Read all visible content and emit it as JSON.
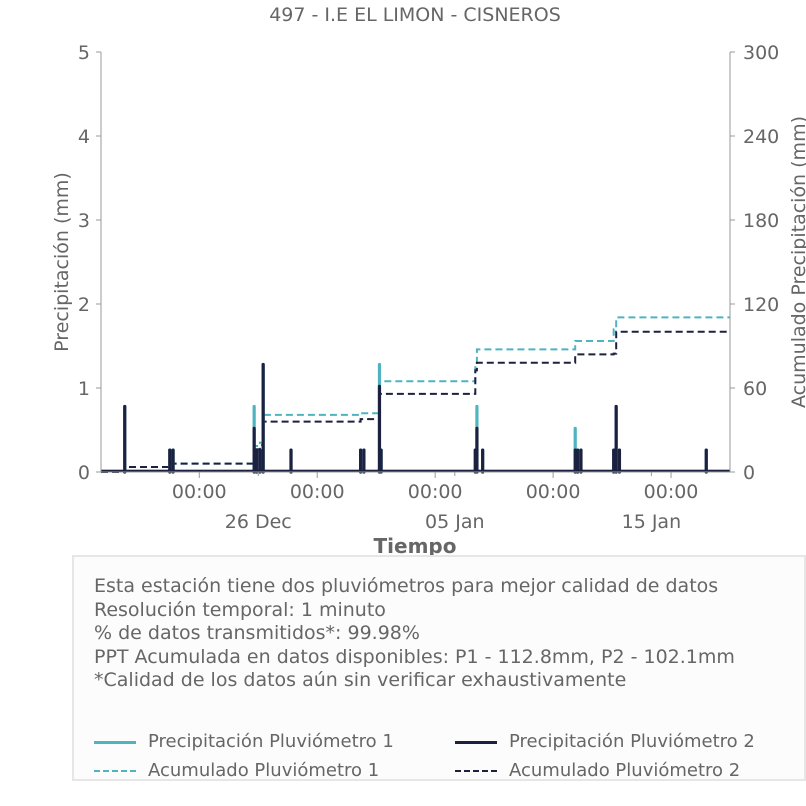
{
  "colors": {
    "p1": "#4fb3c0",
    "p2": "#1c2140",
    "text": "#666666",
    "axis": "#999999"
  },
  "chart_data": {
    "type": "line",
    "title": "497 - I.E EL LIMON - CISNEROS",
    "xlabel": "Tiempo",
    "ylabel": "Precipitación (mm)",
    "y2label": "Acumulado Precipitación (mm)",
    "ylim": [
      0,
      5
    ],
    "y2lim": [
      0,
      300
    ],
    "yticks": [
      "0",
      "1",
      "2",
      "3",
      "4",
      "5"
    ],
    "y2ticks": [
      "0",
      "60",
      "120",
      "180",
      "240",
      "300"
    ],
    "xlim": [
      "2023-12-18",
      "2024-01-19"
    ],
    "xticks": [
      {
        "t": "2023-12-23",
        "label": "00:00"
      },
      {
        "t": "2023-12-29",
        "label": "00:00"
      },
      {
        "t": "2024-01-04",
        "label": "00:00"
      },
      {
        "t": "2024-01-10",
        "label": "00:00"
      },
      {
        "t": "2024-01-16",
        "label": "00:00"
      }
    ],
    "xminor": [
      "2023-12-26",
      "2024-01-05",
      "2024-01-15"
    ],
    "xdatelabels": [
      {
        "t": "2023-12-26",
        "label": "26 Dec"
      },
      {
        "t": "2024-01-05",
        "label": "05 Jan"
      },
      {
        "t": "2024-01-15",
        "label": "15 Jan"
      }
    ],
    "grid": false,
    "series": [
      {
        "name": "Precipitación Pluviómetro 1",
        "axis": "left",
        "style": "solid",
        "points": [
          [
            "2023-12-19 05:00",
            0.78
          ],
          [
            "2023-12-21 12:00",
            0.26
          ],
          [
            "2023-12-21 16:00",
            0.26
          ],
          [
            "2023-12-25 19:00",
            0.78
          ],
          [
            "2023-12-25 22:00",
            0.26
          ],
          [
            "2023-12-26 02:00",
            0.26
          ],
          [
            "2023-12-26 06:00",
            1.28
          ],
          [
            "2023-12-27 16:00",
            0.26
          ],
          [
            "2023-12-31 05:00",
            0.26
          ],
          [
            "2023-12-31 09:00",
            0.26
          ],
          [
            "2024-01-01 04:00",
            1.28
          ],
          [
            "2024-01-01 06:00",
            0.26
          ],
          [
            "2024-01-06 01:00",
            0.26
          ],
          [
            "2024-01-06 03:00",
            0.78
          ],
          [
            "2024-01-06 10:00",
            0.26
          ],
          [
            "2024-01-11 03:00",
            0.52
          ],
          [
            "2024-01-11 06:00",
            0.26
          ],
          [
            "2024-01-11 10:00",
            0.26
          ],
          [
            "2024-01-13 02:00",
            0.26
          ],
          [
            "2024-01-13 05:00",
            0.78
          ],
          [
            "2024-01-13 09:00",
            0.26
          ],
          [
            "2024-01-17 19:00",
            0.26
          ]
        ]
      },
      {
        "name": "Precipitación Pluviómetro 2",
        "axis": "left",
        "style": "solid",
        "points": [
          [
            "2023-12-19 05:00",
            0.78
          ],
          [
            "2023-12-21 12:00",
            0.26
          ],
          [
            "2023-12-21 16:00",
            0.26
          ],
          [
            "2023-12-25 19:00",
            0.52
          ],
          [
            "2023-12-25 22:00",
            0.26
          ],
          [
            "2023-12-26 02:00",
            0.26
          ],
          [
            "2023-12-26 06:00",
            1.28
          ],
          [
            "2023-12-27 16:00",
            0.26
          ],
          [
            "2023-12-31 05:00",
            0.26
          ],
          [
            "2023-12-31 09:00",
            0.26
          ],
          [
            "2024-01-01 04:00",
            1.02
          ],
          [
            "2024-01-01 06:00",
            0.26
          ],
          [
            "2024-01-06 01:00",
            0.26
          ],
          [
            "2024-01-06 03:00",
            0.52
          ],
          [
            "2024-01-06 10:00",
            0.26
          ],
          [
            "2024-01-11 03:00",
            0.26
          ],
          [
            "2024-01-11 06:00",
            0.26
          ],
          [
            "2024-01-11 10:00",
            0.26
          ],
          [
            "2024-01-13 02:00",
            0.26
          ],
          [
            "2024-01-13 05:00",
            0.78
          ],
          [
            "2024-01-13 09:00",
            0.26
          ],
          [
            "2024-01-17 19:00",
            0.26
          ]
        ]
      },
      {
        "name": "Acumulado Pluviómetro 1",
        "axis": "right",
        "style": "dashed",
        "points": [
          [
            "2023-12-18 00:00",
            0
          ],
          [
            "2023-12-19 05:00",
            3.6
          ],
          [
            "2023-12-21 12:00",
            6.0
          ],
          [
            "2023-12-25 19:00",
            18.6
          ],
          [
            "2023-12-26 02:00",
            21.0
          ],
          [
            "2023-12-26 06:00",
            40.8
          ],
          [
            "2023-12-31 05:00",
            42.0
          ],
          [
            "2024-01-01 04:00",
            64.8
          ],
          [
            "2024-01-06 01:00",
            75.6
          ],
          [
            "2024-01-06 03:00",
            87.6
          ],
          [
            "2024-01-11 03:00",
            93.6
          ],
          [
            "2024-01-13 02:00",
            102.0
          ],
          [
            "2024-01-13 05:00",
            110.4
          ],
          [
            "2024-01-19 00:00",
            110.4
          ]
        ]
      },
      {
        "name": "Acumulado Pluviómetro 2",
        "axis": "right",
        "style": "dashed",
        "points": [
          [
            "2023-12-18 00:00",
            0
          ],
          [
            "2023-12-19 05:00",
            3.6
          ],
          [
            "2023-12-21 12:00",
            6.0
          ],
          [
            "2023-12-25 19:00",
            16.2
          ],
          [
            "2023-12-26 02:00",
            19.2
          ],
          [
            "2023-12-26 06:00",
            36.0
          ],
          [
            "2023-12-31 05:00",
            37.8
          ],
          [
            "2024-01-01 04:00",
            55.8
          ],
          [
            "2024-01-06 01:00",
            72.6
          ],
          [
            "2024-01-06 03:00",
            78.0
          ],
          [
            "2024-01-11 03:00",
            84.0
          ],
          [
            "2024-01-13 02:00",
            84.6
          ],
          [
            "2024-01-13 05:00",
            100.2
          ],
          [
            "2024-01-19 00:00",
            100.2
          ]
        ]
      }
    ]
  },
  "info": {
    "lines": [
      "Esta estación tiene dos pluviómetros para mejor calidad de datos",
      "Resolución temporal: 1 minuto",
      "% de datos transmitidos*: 99.98%",
      "PPT Acumulada en datos disponibles: P1 - 112.8mm, P2 - 102.1mm",
      "*Calidad de los datos aún sin verificar exhaustivamente"
    ]
  },
  "legend": {
    "items": [
      {
        "label": "Precipitación Pluviómetro 1",
        "color": "#4fb3c0",
        "style": "solid"
      },
      {
        "label": "Precipitación Pluviómetro 2",
        "color": "#1c2140",
        "style": "solid"
      },
      {
        "label": "Acumulado Pluviómetro 1",
        "color": "#4fb3c0",
        "style": "dashed"
      },
      {
        "label": "Acumulado Pluviómetro 2",
        "color": "#1c2140",
        "style": "dashed"
      }
    ]
  }
}
